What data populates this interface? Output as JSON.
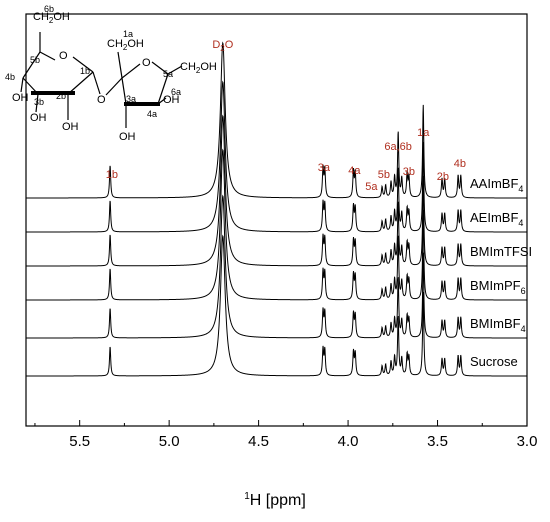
{
  "chart_data": {
    "type": "line",
    "title": "",
    "xlabel": "¹H [ppm]",
    "ylabel": "",
    "xlim": [
      5.8,
      3.0
    ],
    "x_reversed": true,
    "xticks": [
      5.5,
      5.0,
      4.5,
      4.0,
      3.5,
      3.0
    ],
    "xtick_labels": [
      "5.5",
      "5.0",
      "4.5",
      "4.0",
      "3.5",
      "3.0"
    ],
    "grid": false,
    "legend_placement": "right-of-each-trace",
    "line_color": "#000000",
    "label_color": "#b03020",
    "series": [
      {
        "name": "AAImBF4",
        "display": {
          "base": "AAImBF",
          "sub": "4"
        }
      },
      {
        "name": "AEImBF4",
        "display": {
          "base": "AEImBF",
          "sub": "4"
        }
      },
      {
        "name": "BMImTFSI",
        "display": {
          "base": "BMImTFSI",
          "sub": ""
        }
      },
      {
        "name": "BMImPF6",
        "display": {
          "base": "BMImPF",
          "sub": "6"
        }
      },
      {
        "name": "BMImBF4",
        "display": {
          "base": "BMImBF",
          "sub": "4"
        }
      },
      {
        "name": "Sucrose",
        "display": {
          "base": "Sucrose",
          "sub": ""
        }
      }
    ],
    "peaks": [
      {
        "ppm": 5.33,
        "rel_height": 0.21,
        "width": 0.004
      },
      {
        "ppm": 4.7,
        "rel_height": 1.0,
        "width": 0.016
      },
      {
        "ppm": 4.14,
        "rel_height": 0.19,
        "width": 0.004
      },
      {
        "ppm": 4.13,
        "rel_height": 0.18,
        "width": 0.004
      },
      {
        "ppm": 3.97,
        "rel_height": 0.17,
        "width": 0.004
      },
      {
        "ppm": 3.96,
        "rel_height": 0.16,
        "width": 0.004
      },
      {
        "ppm": 3.81,
        "rel_height": 0.07,
        "width": 0.004
      },
      {
        "ppm": 3.79,
        "rel_height": 0.08,
        "width": 0.004
      },
      {
        "ppm": 3.76,
        "rel_height": 0.1,
        "width": 0.004
      },
      {
        "ppm": 3.74,
        "rel_height": 0.13,
        "width": 0.004
      },
      {
        "ppm": 3.72,
        "rel_height": 0.42,
        "width": 0.004
      },
      {
        "ppm": 3.7,
        "rel_height": 0.12,
        "width": 0.004
      },
      {
        "ppm": 3.67,
        "rel_height": 0.15,
        "width": 0.004
      },
      {
        "ppm": 3.66,
        "rel_height": 0.13,
        "width": 0.004
      },
      {
        "ppm": 3.58,
        "rel_height": 0.6,
        "width": 0.004
      },
      {
        "ppm": 3.475,
        "rel_height": 0.12,
        "width": 0.004
      },
      {
        "ppm": 3.46,
        "rel_height": 0.12,
        "width": 0.004
      },
      {
        "ppm": 3.385,
        "rel_height": 0.14,
        "width": 0.004
      },
      {
        "ppm": 3.37,
        "rel_height": 0.14,
        "width": 0.004
      }
    ],
    "annotations": [
      {
        "ppm": 5.32,
        "label": "1b"
      },
      {
        "ppm": 4.7,
        "label": "D2O",
        "display": {
          "base": "D",
          "sub": "2",
          "tail": "O"
        }
      },
      {
        "ppm": 4.135,
        "label": "3a"
      },
      {
        "ppm": 3.965,
        "label": "4a"
      },
      {
        "ppm": 3.87,
        "label": "5a"
      },
      {
        "ppm": 3.8,
        "label": "5b"
      },
      {
        "ppm": 3.72,
        "label": "6a,6b"
      },
      {
        "ppm": 3.66,
        "label": "3b"
      },
      {
        "ppm": 3.58,
        "label": "1a"
      },
      {
        "ppm": 3.47,
        "label": "2b"
      },
      {
        "ppm": 3.375,
        "label": "4b"
      }
    ]
  },
  "structure": {
    "name": "sucrose",
    "atom_labels": [
      "OH",
      "O",
      "O",
      "O",
      "OH",
      "OH",
      "OH",
      "OH",
      "OH"
    ],
    "group_labels": [
      {
        "text": "CH",
        "sub": "2",
        "tail": "OH"
      },
      {
        "text": "CH",
        "sub": "2",
        "tail": "OH"
      },
      {
        "text": "CH",
        "sub": "2",
        "tail": "OH"
      }
    ],
    "position_labels": [
      "6b",
      "5b",
      "4b",
      "3b",
      "2b",
      "1b",
      "1a",
      "5a",
      "6a",
      "3a",
      "4a"
    ]
  }
}
